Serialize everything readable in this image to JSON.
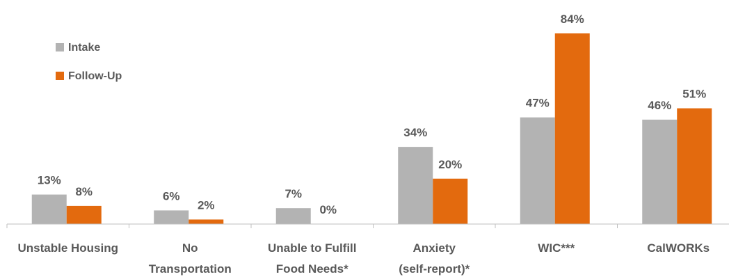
{
  "chart_data": {
    "type": "bar",
    "categories": [
      [
        "Unstable Housing"
      ],
      [
        "No",
        "Transportation"
      ],
      [
        "Unable to Fulfill",
        "Food Needs*"
      ],
      [
        "Anxiety",
        "(self-report)*"
      ],
      [
        "WIC***"
      ],
      [
        "CalWORKs"
      ]
    ],
    "series": [
      {
        "name": "Intake",
        "values": [
          13,
          6,
          7,
          34,
          47,
          46
        ],
        "color": "#b3b3b3"
      },
      {
        "name": "Follow-Up",
        "values": [
          8,
          2,
          0,
          20,
          84,
          51
        ],
        "color": "#e36a0e"
      }
    ],
    "data_labels": [
      [
        "13%",
        "6%",
        "7%",
        "34%",
        "47%",
        "46%"
      ],
      [
        "8%",
        "2%",
        "0%",
        "20%",
        "84%",
        "51%"
      ]
    ],
    "ylim": [
      0,
      84
    ],
    "grid": false,
    "legend_position": "top-left",
    "axis_color": "#bfbfbf"
  }
}
